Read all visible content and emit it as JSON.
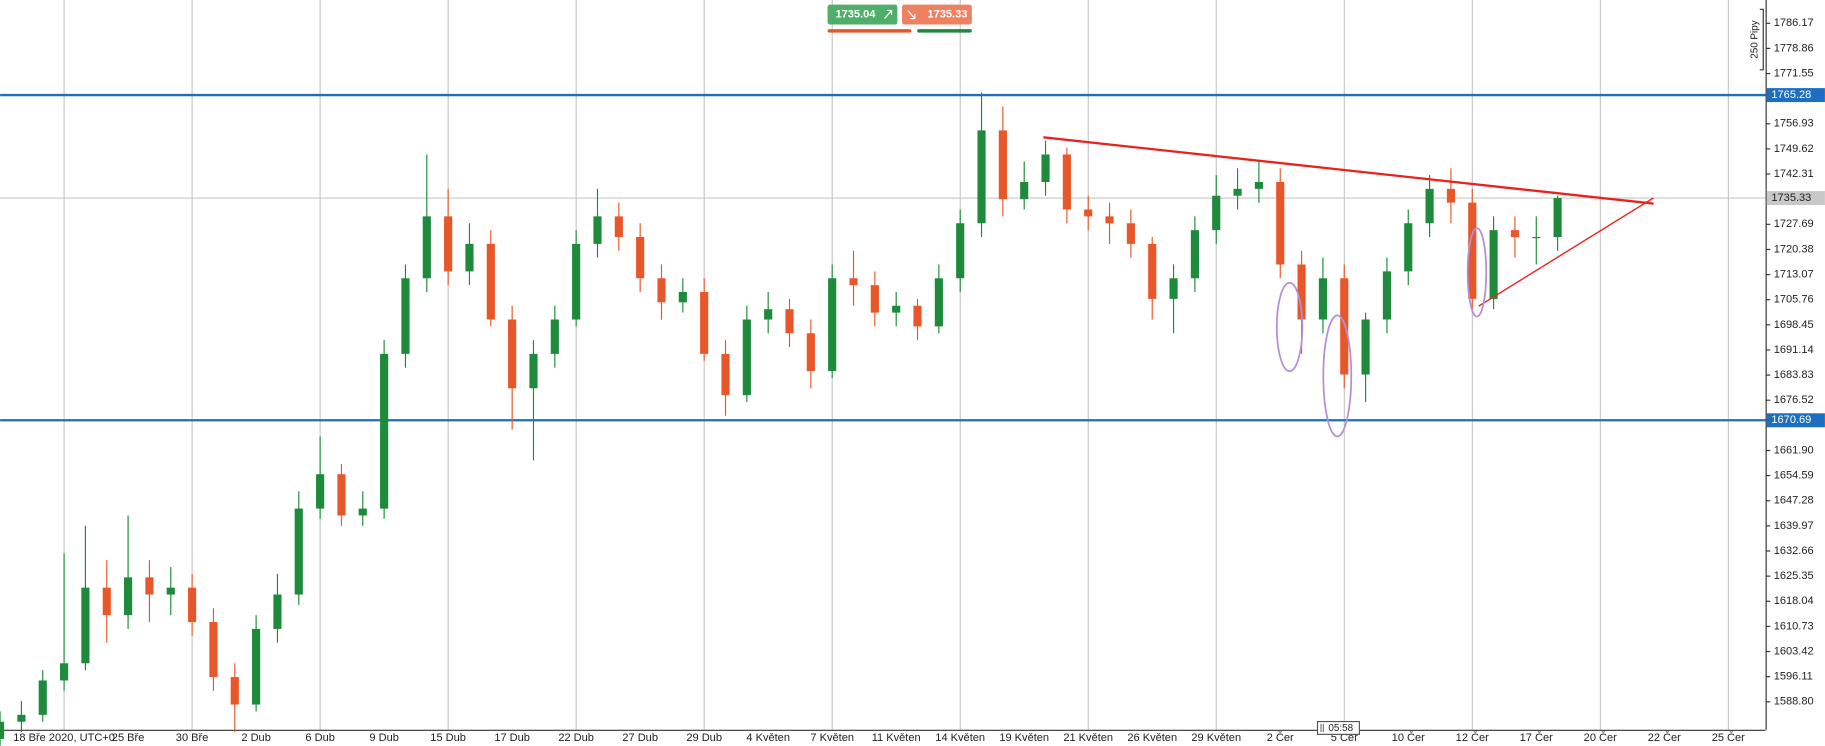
{
  "chart_data": {
    "type": "candlestick",
    "categories": [
      null,
      null,
      null,
      "18 Bře 2020, UTC+0",
      null,
      null,
      "25 Bře",
      null,
      null,
      "30 Bře",
      null,
      null,
      "2 Dub",
      null,
      null,
      "6 Dub",
      null,
      null,
      "9 Dub",
      null,
      null,
      "15 Dub",
      null,
      null,
      "17 Dub",
      null,
      null,
      "22 Dub",
      null,
      null,
      "27 Dub",
      null,
      null,
      "29 Dub",
      null,
      null,
      "4 Květen",
      null,
      null,
      "7 Květen",
      null,
      null,
      "11 Květen",
      null,
      null,
      "14 Květen",
      null,
      null,
      "19 Květen",
      null,
      null,
      "21 Květen",
      null,
      null,
      "26 Květen",
      null,
      null,
      "29 Květen",
      null,
      null,
      "2 Čer",
      null,
      null,
      "5 Čer",
      null,
      null,
      "10 Čer",
      null,
      null,
      "12 Čer",
      null,
      null,
      "17 Čer",
      null,
      null,
      "20 Čer",
      null,
      null,
      "22 Čer",
      null,
      null,
      "25 Čer"
    ],
    "open": [
      1578,
      1583,
      1585,
      1595,
      1600,
      1622,
      1614,
      1625,
      1620,
      1622,
      1612,
      1596,
      1588,
      1610,
      1620,
      1645,
      1655,
      1643,
      1645,
      1690,
      1712,
      1730,
      1714,
      1722,
      1700,
      1680,
      1690,
      1700,
      1722,
      1730,
      1724,
      1712,
      1705,
      1708,
      1690,
      1678,
      1700,
      1703,
      1696,
      1685,
      1712,
      1710,
      1702,
      1704,
      1698,
      1712,
      1728,
      1755,
      1735,
      1740,
      1748,
      1732,
      1730,
      1728,
      1722,
      1706,
      1712,
      1726,
      1736,
      1738,
      1740,
      1716,
      1700,
      1712,
      1684,
      1700,
      1714,
      1728,
      1738,
      1734,
      1706,
      1726,
      1724,
      1724,
      null,
      null,
      null,
      null,
      null,
      null,
      null,
      null
    ],
    "high": [
      1586,
      1589,
      1598,
      1632,
      1640,
      1630,
      1643,
      1630,
      1628,
      1626,
      1616,
      1600,
      1614,
      1626,
      1650,
      1666,
      1658,
      1650,
      1694,
      1716,
      1748,
      1738,
      1728,
      1726,
      1704,
      1694,
      1704,
      1726,
      1738,
      1734,
      1728,
      1716,
      1712,
      1712,
      1694,
      1704,
      1708,
      1706,
      1700,
      1716,
      1720,
      1714,
      1708,
      1706,
      1716,
      1732,
      1766,
      1762,
      1746,
      1752,
      1750,
      1736,
      1734,
      1732,
      1724,
      1716,
      1730,
      1742,
      1744,
      1746,
      1744,
      1720,
      1718,
      1716,
      1702,
      1718,
      1732,
      1742,
      1744,
      1738,
      1730,
      1730,
      1730,
      1736,
      null,
      null,
      null,
      null,
      null,
      null,
      null,
      null
    ],
    "low": [
      1576,
      1580,
      1583,
      1592,
      1598,
      1606,
      1610,
      1612,
      1614,
      1608,
      1592,
      1580,
      1586,
      1606,
      1617,
      1642,
      1640,
      1640,
      1642,
      1686,
      1708,
      1710,
      1710,
      1698,
      1668,
      1659,
      1686,
      1698,
      1718,
      1720,
      1708,
      1700,
      1702,
      1688,
      1672,
      1676,
      1696,
      1692,
      1680,
      1683,
      1704,
      1698,
      1698,
      1694,
      1696,
      1708,
      1724,
      1730,
      1732,
      1736,
      1728,
      1726,
      1722,
      1718,
      1700,
      1696,
      1708,
      1722,
      1732,
      1734,
      1712,
      1690,
      1696,
      1680,
      1676,
      1696,
      1710,
      1724,
      1728,
      1702,
      1703,
      1718,
      1716,
      1720,
      null,
      null,
      null,
      null,
      null,
      null,
      null,
      null
    ],
    "close": [
      1583,
      1585,
      1595,
      1600,
      1622,
      1614,
      1625,
      1620,
      1622,
      1612,
      1596,
      1588,
      1610,
      1620,
      1645,
      1655,
      1643,
      1645,
      1690,
      1712,
      1730,
      1714,
      1722,
      1700,
      1680,
      1690,
      1700,
      1722,
      1730,
      1724,
      1712,
      1705,
      1708,
      1690,
      1678,
      1700,
      1703,
      1696,
      1685,
      1712,
      1710,
      1702,
      1704,
      1698,
      1712,
      1728,
      1755,
      1735,
      1740,
      1748,
      1732,
      1730,
      1728,
      1722,
      1706,
      1712,
      1726,
      1736,
      1738,
      1740,
      1716,
      1700,
      1712,
      1684,
      1700,
      1714,
      1728,
      1738,
      1734,
      1706,
      1726,
      1724,
      1724,
      1735.33,
      null,
      null,
      null,
      null,
      null,
      null,
      null,
      null
    ],
    "up_color": "#1e8a3c",
    "down_color": "#e8572a",
    "ylim": [
      1580.68,
      1792.94
    ],
    "yticks": [
      {
        "value": 1588.8,
        "label": "1588.80"
      },
      1596.11,
      1603.42,
      1610.73,
      1618.04,
      1625.35,
      1632.66,
      1639.97,
      1647.28,
      1654.59,
      {
        "value": 1661.9,
        "label": "1661.90"
      },
      1676.52,
      1683.83,
      1691.14,
      1698.45,
      1705.76,
      1713.07,
      1720.38,
      1727.69,
      1742.31,
      1749.62,
      1756.93,
      1771.55,
      1778.86,
      1786.17
    ],
    "levels": [
      {
        "value": 1765.28,
        "color": "#1c6fc0"
      },
      {
        "value": 1670.69,
        "color": "#1c6fc0"
      }
    ],
    "current_price": {
      "value": 1735.33,
      "color": "#c8c8c8"
    },
    "trendlines": [
      {
        "x": [
          48.9,
          77.5
        ],
        "y": [
          1753,
          1733.7
        ],
        "color": "#e8231f"
      },
      {
        "x": [
          69.3,
          77.5
        ],
        "y": [
          1703.9,
          1735.4
        ],
        "color": "#e8231f"
      }
    ],
    "quote": {
      "bid": 1735.04,
      "ask": 1735.33
    },
    "range_label": "250 Pipy",
    "time_label": "05:58"
  }
}
